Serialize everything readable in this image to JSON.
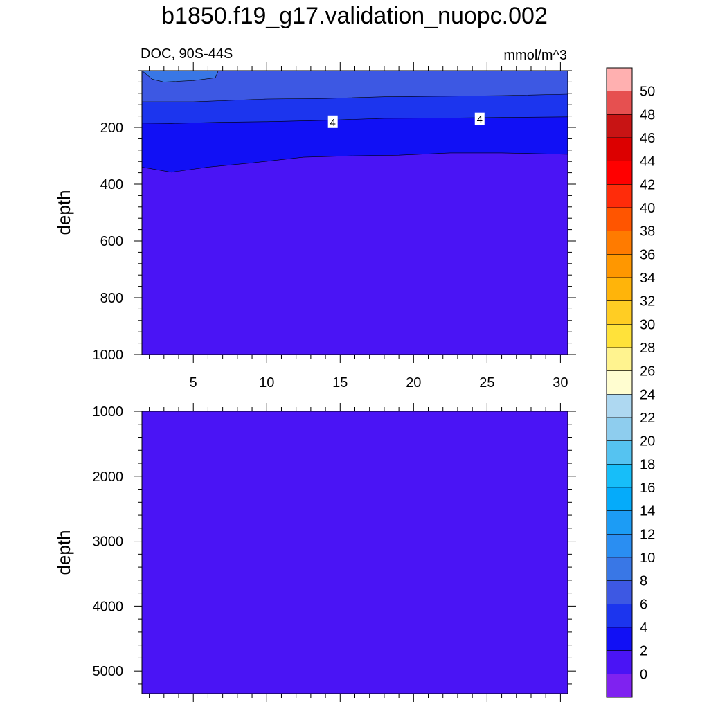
{
  "figure": {
    "title": "b1850.f19_g17.validation_nuopc.002",
    "left_string": "DOC, 90S-44S",
    "right_string": "mmol/m^3"
  },
  "chart_data": [
    {
      "type": "contour",
      "panel": "upper",
      "xlim": [
        1.5,
        30.5
      ],
      "ylim": [
        1000,
        0
      ],
      "x_ticks": [
        5,
        10,
        15,
        20,
        25,
        30
      ],
      "x_tick_labels": [
        "5",
        "10",
        "15",
        "20",
        "25",
        "30"
      ],
      "y_ticks": [
        200,
        400,
        600,
        800,
        1000
      ],
      "y_tick_labels": [
        "200",
        "400",
        "600",
        "800",
        "1000"
      ],
      "xlabel": "",
      "ylabel": "depth",
      "contour_levels": [
        2,
        4,
        6,
        8
      ],
      "contour_line_labels": [
        {
          "x": 14.5,
          "y": 180,
          "text": "4"
        },
        {
          "x": 24.5,
          "y": 170,
          "text": "4"
        }
      ],
      "bands": [
        {
          "range": "2-4",
          "color": "#4a14f5",
          "boundary_x": [
            1.5,
            3.5,
            6,
            9,
            12.5,
            16,
            19,
            22.5,
            26,
            30.5
          ],
          "boundary_y": [
            340,
            358,
            340,
            325,
            305,
            300,
            298,
            290,
            290,
            295
          ]
        },
        {
          "range": "4-6",
          "color": "#1110f5",
          "boundary_x": [
            1.5,
            3.5,
            7,
            10,
            14,
            18,
            22,
            26,
            30.5
          ],
          "boundary_y": [
            185,
            186,
            182,
            180,
            175,
            168,
            167,
            165,
            163
          ]
        },
        {
          "range": "6-8",
          "color": "#1c35ee",
          "boundary_x": [
            1.5,
            5,
            10,
            14,
            18,
            22,
            26,
            30.5
          ],
          "boundary_y": [
            110,
            110,
            100,
            98,
            92,
            90,
            88,
            83
          ]
        },
        {
          "range": "8-10",
          "color": "#3d58e3",
          "boundary_x": [
            1.5,
            6.5
          ],
          "boundary_y": [
            0,
            0
          ]
        },
        {
          "range": "10-12",
          "color": "#3977e6",
          "boundary_x": [
            1.5,
            2.2,
            3,
            5,
            6.5,
            6.7
          ],
          "boundary_y": [
            0,
            30,
            40,
            35,
            25,
            0
          ]
        }
      ]
    },
    {
      "type": "contour",
      "panel": "lower",
      "xlim": [
        1.5,
        30.5
      ],
      "ylim": [
        5350,
        1000
      ],
      "y_ticks": [
        1000,
        2000,
        3000,
        4000,
        5000
      ],
      "y_tick_labels": [
        "1000",
        "2000",
        "3000",
        "4000",
        "5000"
      ],
      "xlabel": "",
      "ylabel": "depth",
      "fill_color": "#4a14f5",
      "fill_range": "2-4"
    }
  ],
  "colorbar": {
    "labels": [
      "0",
      "2",
      "4",
      "6",
      "8",
      "10",
      "12",
      "14",
      "16",
      "18",
      "20",
      "22",
      "24",
      "26",
      "28",
      "30",
      "32",
      "34",
      "36",
      "38",
      "40",
      "42",
      "44",
      "46",
      "48",
      "50"
    ],
    "colors": [
      "#7f22f0",
      "#4a14f5",
      "#1110f5",
      "#1c35ee",
      "#3d58e3",
      "#3977e6",
      "#2a8ef2",
      "#1c9cf5",
      "#05abfa",
      "#17bef9",
      "#55c3f1",
      "#8ecdee",
      "#aed8f1",
      "#fffdd0",
      "#fff38f",
      "#ffe23a",
      "#ffcd23",
      "#ffb40a",
      "#ff9700",
      "#ff7b00",
      "#ff5500",
      "#ff2c0a",
      "#ff0000",
      "#dc0000",
      "#c81414",
      "#e65050",
      "#ffb0b0"
    ]
  }
}
